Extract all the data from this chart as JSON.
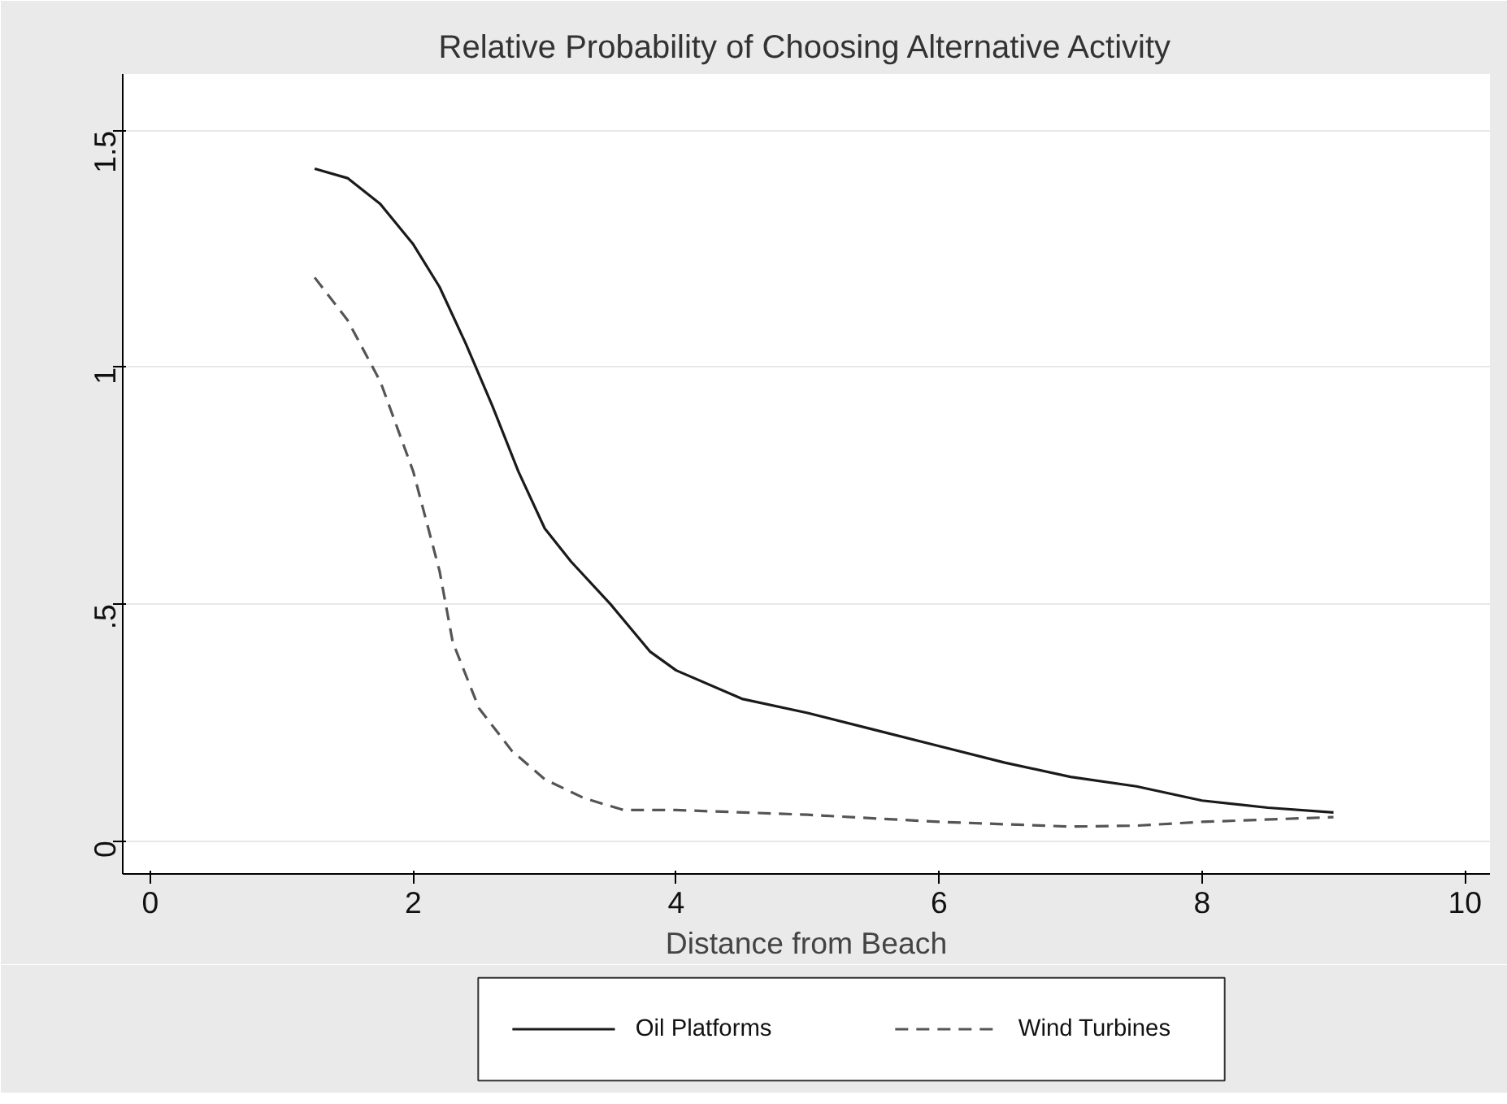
{
  "chart_data": {
    "type": "line",
    "title": "Relative Probability of Choosing Alternative Activity",
    "xlabel": "Distance from Beach",
    "xlim": [
      -0.21,
      10.19
    ],
    "xticks": [
      0,
      2,
      4,
      6,
      8,
      10
    ],
    "ylim": [
      -0.07,
      1.62
    ],
    "yticks": [
      0,
      {
        "value": 0.5,
        "label": ".5"
      },
      1,
      1.5
    ],
    "grid": "y",
    "legend": "bottom",
    "series": [
      {
        "name": "Oil Platforms",
        "color": "#1a1a1a",
        "line_style": "solid",
        "x": [
          1.25,
          1.5,
          1.75,
          2.0,
          2.2,
          2.4,
          2.6,
          2.8,
          3.0,
          3.2,
          3.5,
          3.8,
          4.0,
          4.5,
          5.0,
          5.5,
          6.0,
          6.5,
          7.0,
          7.5,
          8.0,
          8.5,
          9.0
        ],
        "values": [
          1.42,
          1.4,
          1.345,
          1.26,
          1.17,
          1.05,
          0.92,
          0.78,
          0.66,
          0.59,
          0.5,
          0.4,
          0.36,
          0.3,
          0.27,
          0.235,
          0.2,
          0.165,
          0.135,
          0.115,
          0.085,
          0.07,
          0.06
        ]
      },
      {
        "name": "Wind Turbines",
        "color": "#555555",
        "line_style": "dashed",
        "x": [
          1.25,
          1.5,
          1.75,
          2.0,
          2.2,
          2.3,
          2.5,
          2.75,
          3.0,
          3.3,
          3.6,
          4.0,
          5.0,
          6.0,
          7.0,
          7.5,
          8.0,
          9.0
        ],
        "values": [
          1.19,
          1.1,
          0.97,
          0.78,
          0.57,
          0.42,
          0.28,
          0.19,
          0.13,
          0.09,
          0.065,
          0.065,
          0.055,
          0.04,
          0.03,
          0.032,
          0.04,
          0.05
        ]
      }
    ]
  }
}
